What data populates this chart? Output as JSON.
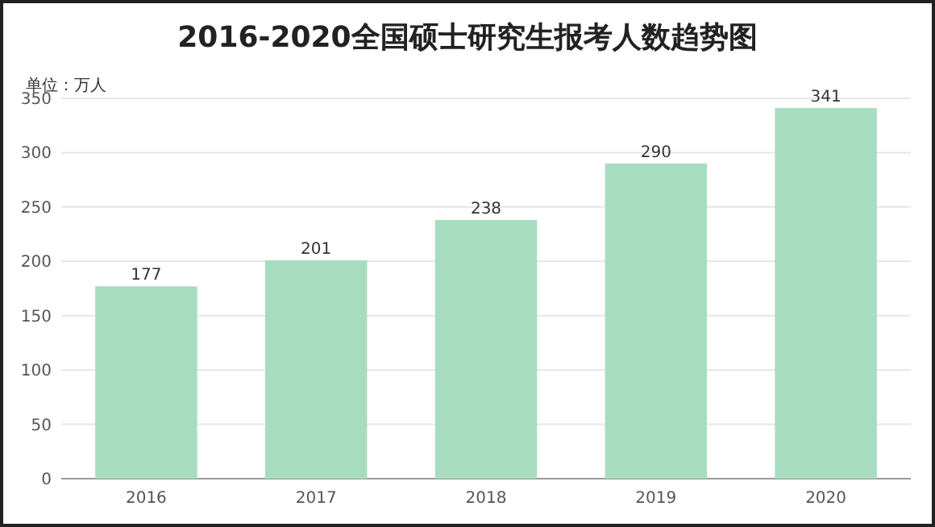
{
  "chart_data": {
    "type": "bar",
    "title": "2016-2020全国硕士研究生报考人数趋势图",
    "ylabel": "单位：万人",
    "categories": [
      "2016",
      "2017",
      "2018",
      "2019",
      "2020"
    ],
    "values": [
      177,
      201,
      238,
      290,
      341
    ],
    "color": "#a8dcc0",
    "ylim": [
      0,
      350
    ],
    "yticks": [
      0,
      50,
      100,
      150,
      200,
      250,
      300,
      350
    ],
    "grid": "y",
    "data_labels": true
  }
}
